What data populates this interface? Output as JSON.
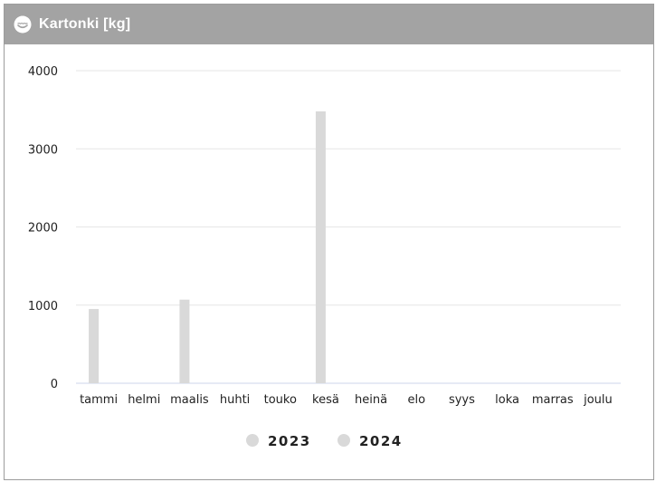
{
  "header": {
    "title": "Kartonki [kg]",
    "icon": "smile-cloud-icon"
  },
  "colors": {
    "header_bg": "#a3a3a3",
    "bar": "#d9d9d9",
    "grid": "#e6e6e6",
    "axis": "#ccd6eb"
  },
  "chart_data": {
    "type": "bar",
    "categories": [
      "tammi",
      "helmi",
      "maalis",
      "huhti",
      "touko",
      "kesä",
      "heinä",
      "elo",
      "syys",
      "loka",
      "marras",
      "joulu"
    ],
    "series": [
      {
        "name": "2023",
        "values": [
          950,
          0,
          1070,
          0,
          0,
          3480,
          0,
          0,
          0,
          0,
          0,
          0
        ]
      },
      {
        "name": "2024",
        "values": [
          0,
          0,
          0,
          0,
          0,
          0,
          0,
          0,
          0,
          0,
          0,
          0
        ]
      }
    ],
    "ylim": [
      0,
      4000
    ],
    "yticks": [
      0,
      1000,
      2000,
      3000,
      4000
    ],
    "grid": true,
    "legend_position": "bottom"
  }
}
